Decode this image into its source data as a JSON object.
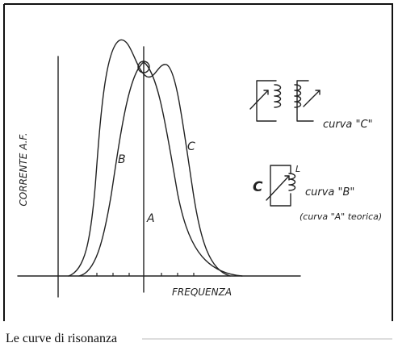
{
  "figure": {
    "axis_y_label": "CORRENTE A.F.",
    "axis_x_label": "FREQUENZA",
    "curve_labels": [
      "A",
      "B",
      "C"
    ],
    "legend": {
      "curve_c": "curva \"C\"",
      "component_c": "C",
      "component_l": "L",
      "curve_b": "curva \"B\"",
      "curve_a": "(curva \"A\" teorica)"
    }
  },
  "caption": "Le curve di risonanza"
}
